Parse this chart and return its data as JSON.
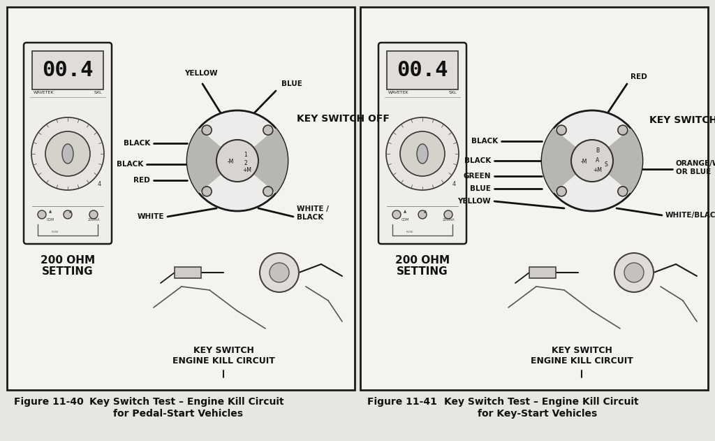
{
  "bg_color": "#e8e6e2",
  "panel_bg": "#f2f0ec",
  "border_color": "#1a1a1a",
  "text_color": "#111111",
  "fig1": {
    "caption_num": "Figure 11-40",
    "caption_text": "Key Switch Test – Engine Kill Circuit",
    "caption_sub": "for Pedal-Start Vehicles",
    "ohm_label": "200 OHM\nSETTING",
    "key_switch_off": "KEY SWITCH OFF",
    "kill_label1": "KEY SWITCH",
    "kill_label2": "ENGINE KILL CIRCUIT",
    "wires": [
      "YELLOW",
      "BLACK",
      "BLACK",
      "RED",
      "WHITE",
      "BLUE",
      "WHITE /\nBLACK"
    ],
    "terminals": [
      "-M",
      "1",
      "2",
      "+M"
    ]
  },
  "fig2": {
    "caption_num": "Figure 11-41",
    "caption_text": "Key Switch Test – Engine Kill Circuit",
    "caption_sub": "for Key-Start Vehicles",
    "ohm_label": "200 OHM\nSETTING",
    "key_switch_off": "KEY SWITCH OFF",
    "kill_label1": "KEY SWITCH",
    "kill_label2": "ENGINE KILL CIRCUIT",
    "wires": [
      "BLACK",
      "BLACK",
      "GREEN",
      "BLUE",
      "YELLOW",
      "RED",
      "ORANGE/WHITE\nOR BLUE",
      "WHITE/BLACK"
    ],
    "terminals": [
      "-M",
      "B",
      "A",
      "S",
      "+M"
    ]
  }
}
